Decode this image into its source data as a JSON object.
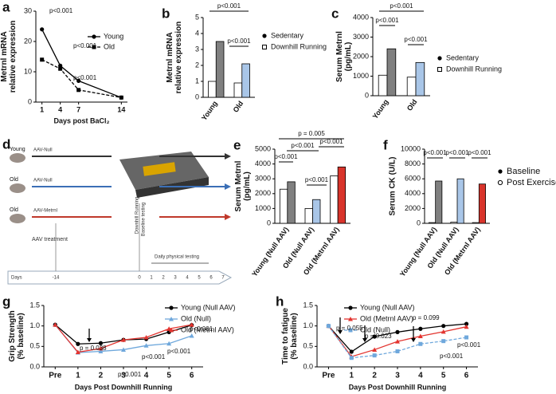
{
  "chart_data": [
    {
      "panel": "a",
      "type": "line",
      "ylabel": [
        "Metrnl mRNA",
        "relative expression"
      ],
      "xlabel": "Days post BaCl₂",
      "x": [
        1,
        4,
        7,
        14
      ],
      "xlim": [
        0,
        15
      ],
      "xticks": [
        1,
        4,
        7,
        14
      ],
      "ylim": [
        0,
        30
      ],
      "yticks": [
        0,
        10,
        20,
        30
      ],
      "series": [
        {
          "name": "Young",
          "color": "#000000",
          "values": [
            24,
            12,
            7,
            1.5
          ]
        },
        {
          "name": "Old",
          "color": "#000000",
          "values": [
            14,
            11,
            4,
            1.5
          ]
        }
      ],
      "annotations": [
        "p<0.001",
        "p<0.001",
        "p<0.001"
      ]
    },
    {
      "panel": "b",
      "type": "bar",
      "ylabel": [
        "Metrnl mRNA",
        "relative expression"
      ],
      "categories": [
        "Young",
        "Old"
      ],
      "ylim": [
        0,
        5
      ],
      "yticks": [
        0,
        1,
        2,
        3,
        4,
        5
      ],
      "series": [
        {
          "name": "Sedentary",
          "colors": [
            "#ffffff",
            "#ffffff"
          ],
          "values": [
            1.0,
            0.9
          ]
        },
        {
          "name": "Downhill Running",
          "colors": [
            "#808080",
            "#a9c6e8"
          ],
          "values": [
            3.5,
            2.1
          ]
        }
      ],
      "annotations": [
        "p<0.001",
        "p<0.001"
      ]
    },
    {
      "panel": "c",
      "type": "bar",
      "ylabel": [
        "Serum Metrnl",
        "(pg/mL)"
      ],
      "categories": [
        "Young",
        "Old"
      ],
      "ylim": [
        0,
        4000
      ],
      "yticks": [
        0,
        1000,
        2000,
        3000,
        4000
      ],
      "series": [
        {
          "name": "Sedentary",
          "colors": [
            "#ffffff",
            "#ffffff"
          ],
          "values": [
            1050,
            950
          ]
        },
        {
          "name": "Downhill Running",
          "colors": [
            "#808080",
            "#a9c6e8"
          ],
          "values": [
            2400,
            1700
          ]
        }
      ],
      "annotations": [
        "p<0.001",
        "p<0.001",
        "p<0.001"
      ]
    },
    {
      "panel": "e",
      "type": "bar",
      "ylabel": [
        "Serum Metrnl",
        "(pg/mL)"
      ],
      "categories": [
        "Young (Null AAV)",
        "Old (Null AAV)",
        "Old (Metrnl AAV)"
      ],
      "ylim": [
        0,
        5000
      ],
      "yticks": [
        0,
        1000,
        2000,
        3000,
        4000,
        5000
      ],
      "series": [
        {
          "name": "Baseline",
          "colors": [
            "#ffffff",
            "#ffffff",
            "#ffffff"
          ],
          "values": [
            2300,
            1000,
            3200
          ]
        },
        {
          "name": "Post Exercise",
          "colors": [
            "#808080",
            "#a9c6e8",
            "#d9342b"
          ],
          "values": [
            2800,
            1600,
            3800
          ]
        }
      ],
      "annotations": [
        "p<0.001",
        "p<0.001",
        "p<0.001",
        "p<0.001",
        "p = 0.005"
      ]
    },
    {
      "panel": "f",
      "type": "bar",
      "ylabel": [
        "Serum CK (U/L)"
      ],
      "categories": [
        "Young (Null AAV)",
        "Old (Null AAV)",
        "Old (Metrnl AAV)"
      ],
      "ylim": [
        0,
        10000
      ],
      "yticks": [
        0,
        2000,
        4000,
        6000,
        8000,
        10000
      ],
      "series": [
        {
          "name": "Baseline",
          "colors": [
            "#ffffff",
            "#ffffff",
            "#ffffff"
          ],
          "values": [
            100,
            150,
            100
          ]
        },
        {
          "name": "Post Exercise",
          "colors": [
            "#808080",
            "#a9c6e8",
            "#d9342b"
          ],
          "values": [
            5700,
            6000,
            5300
          ]
        }
      ],
      "annotations": [
        "p<0.001",
        "p<0.001",
        "p<0.001"
      ]
    },
    {
      "panel": "g",
      "type": "line",
      "ylabel": [
        "Grip Strength",
        "(% baseline)"
      ],
      "xlabel": "Days Post Downhill Running",
      "categories": [
        "Pre",
        "1",
        "2",
        "3",
        "4",
        "5",
        "6"
      ],
      "ylim": [
        0,
        1.5
      ],
      "yticks": [
        {
          "value": 0,
          "label": "0.0"
        },
        {
          "value": 0.5,
          "label": "0.5"
        },
        {
          "value": 1,
          "label": "1.0"
        },
        {
          "value": 1.5,
          "label": "1.5"
        }
      ],
      "series": [
        {
          "name": "Young (Null AAV)",
          "color": "#000000",
          "values": [
            1.03,
            0.56,
            0.58,
            0.66,
            0.68,
            0.85,
            1.02
          ]
        },
        {
          "name": "Old (Null)",
          "color": "#6fa8dc",
          "values": [
            1.03,
            0.35,
            0.38,
            0.42,
            0.52,
            0.57,
            0.76
          ]
        },
        {
          "name": "Old (Metrnl AAV)",
          "color": "#e3342f",
          "values": [
            1.03,
            0.36,
            0.45,
            0.66,
            0.72,
            0.93,
            1.03
          ]
        }
      ],
      "annotations": [
        "p = 0.038",
        "p<0.001",
        "p<0.001",
        "p<0.001",
        "p<0.001"
      ]
    },
    {
      "panel": "h",
      "type": "line",
      "ylabel": [
        "Time to fatigue",
        "(% baseline)"
      ],
      "xlabel": "Days Post Downhill Running",
      "categories": [
        "Pre",
        "1",
        "2",
        "3",
        "4",
        "5",
        "6"
      ],
      "ylim": [
        0,
        1.5
      ],
      "yticks": [
        {
          "value": 0,
          "label": "0.0"
        },
        {
          "value": 0.5,
          "label": "0.5"
        },
        {
          "value": 1,
          "label": "1.0"
        },
        {
          "value": 1.5,
          "label": "1.5"
        }
      ],
      "series": [
        {
          "name": "Young (Null AAV)",
          "color": "#000000",
          "values": [
            1.0,
            0.37,
            0.74,
            0.85,
            0.93,
            1.0,
            1.05
          ]
        },
        {
          "name": "Old (Metrnl AAV)",
          "color": "#e3342f",
          "values": [
            1.0,
            0.25,
            0.42,
            0.62,
            0.75,
            0.86,
            0.98
          ]
        },
        {
          "name": "Old (Null)",
          "color": "#6fa8dc",
          "values": [
            1.0,
            0.22,
            0.28,
            0.38,
            0.56,
            0.63,
            0.72
          ]
        }
      ],
      "annotations": [
        "p = 0.055",
        "p = 0.023",
        "p = 0.099",
        "p<0.001",
        "p<0.001"
      ]
    }
  ],
  "diagram": {
    "panel": "d",
    "groups": [
      {
        "label": "Young",
        "treatment": "AAV-Null"
      },
      {
        "label": "Old",
        "treatment": "AAV-Null"
      },
      {
        "label": "Old",
        "treatment": "AAV-Metrnl"
      }
    ],
    "aav": "AAV treatment",
    "running": "Downhill Running",
    "baseline": "Baseline testing",
    "daily": "Daily physical testing",
    "days_label": "Days",
    "days": [
      "-14",
      "0",
      "1",
      "2",
      "3",
      "4",
      "5",
      "6",
      "7"
    ]
  }
}
